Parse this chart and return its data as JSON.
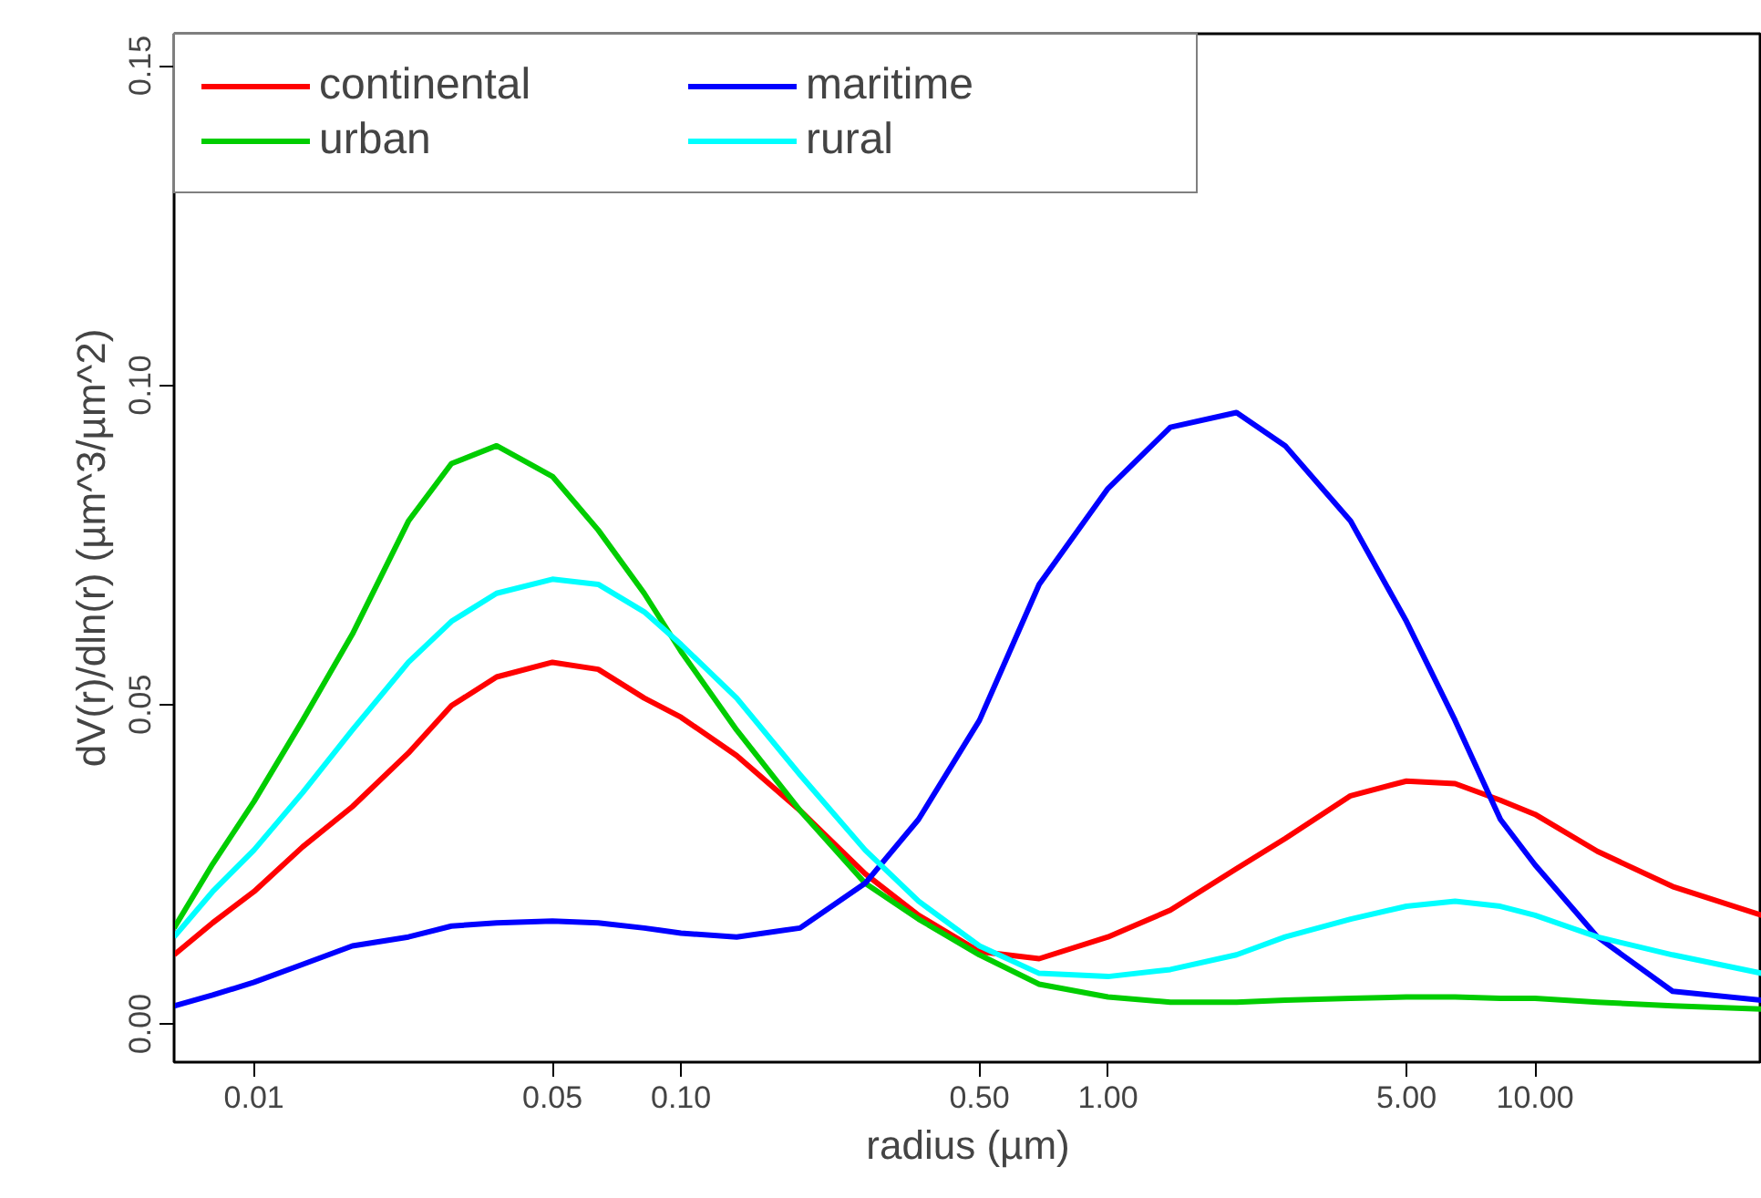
{
  "chart_data": {
    "type": "line",
    "xlabel": "radius (µm)",
    "ylabel": "dV(r)/dln(r) (µm^3/µm^2)",
    "log": "x",
    "x": [
      0.0065,
      0.008,
      0.01,
      0.013,
      0.017,
      0.023,
      0.029,
      0.037,
      0.05,
      0.064,
      0.082,
      0.1,
      0.135,
      0.19,
      0.27,
      0.36,
      0.5,
      0.69,
      1,
      1.4,
      2,
      2.6,
      3.7,
      5,
      6.5,
      8.3,
      10,
      14,
      21,
      34
    ],
    "xlim": [
      0.0065,
      34
    ],
    "ylim": [
      -0.006,
      0.155
    ],
    "xticks": [
      {
        "value": 0.01,
        "label": "0.01"
      },
      {
        "value": 0.05,
        "label": "0.05"
      },
      {
        "value": 0.1,
        "label": "0.10"
      },
      {
        "value": 0.5,
        "label": "0.50"
      },
      {
        "value": 1,
        "label": "1.00"
      },
      {
        "value": 5,
        "label": "5.00"
      },
      {
        "value": 10,
        "label": "10.00"
      }
    ],
    "yticks": [
      {
        "value": 0,
        "label": "0.00"
      },
      {
        "value": 0.05,
        "label": "0.05"
      },
      {
        "value": 0.1,
        "label": "0.10"
      },
      {
        "value": 0.15,
        "label": "0.15"
      }
    ],
    "grid": false,
    "legend": "top left",
    "line_style": "solid",
    "marker": "none",
    "series": [
      {
        "name": "continental",
        "color": "#ff0000",
        "values": [
          0.0108,
          0.0158,
          0.0207,
          0.0277,
          0.034,
          0.0424,
          0.0498,
          0.0543,
          0.0566,
          0.0555,
          0.051,
          0.048,
          0.042,
          0.0334,
          0.0235,
          0.017,
          0.0113,
          0.0102,
          0.0136,
          0.0178,
          0.0243,
          0.029,
          0.0357,
          0.038,
          0.0376,
          0.035,
          0.0328,
          0.027,
          0.0215,
          0.017
        ]
      },
      {
        "name": "urban",
        "color": "#00cd00",
        "values": [
          0.015,
          0.025,
          0.0348,
          0.0475,
          0.061,
          0.0787,
          0.0877,
          0.0905,
          0.0857,
          0.0773,
          0.0674,
          0.0583,
          0.046,
          0.0334,
          0.022,
          0.0164,
          0.0108,
          0.0062,
          0.0042,
          0.0034,
          0.0034,
          0.0037,
          0.004,
          0.0042,
          0.0042,
          0.004,
          0.004,
          0.0034,
          0.0028,
          0.0023
        ]
      },
      {
        "name": "maritime",
        "color": "#0000ff",
        "values": [
          0.0028,
          0.0045,
          0.0065,
          0.0093,
          0.0122,
          0.0136,
          0.0153,
          0.0158,
          0.0161,
          0.0158,
          0.015,
          0.0142,
          0.0136,
          0.015,
          0.022,
          0.032,
          0.0475,
          0.0688,
          0.0838,
          0.0934,
          0.0957,
          0.0905,
          0.0787,
          0.063,
          0.0475,
          0.032,
          0.0249,
          0.0136,
          0.0051,
          0.0037
        ]
      },
      {
        "name": "rural",
        "color": "#00ffff",
        "values": [
          0.0136,
          0.0207,
          0.0272,
          0.0362,
          0.046,
          0.0566,
          0.063,
          0.0674,
          0.0696,
          0.0688,
          0.0645,
          0.0594,
          0.051,
          0.039,
          0.0272,
          0.0192,
          0.0122,
          0.0079,
          0.0074,
          0.0085,
          0.0108,
          0.0136,
          0.0164,
          0.0184,
          0.0192,
          0.0184,
          0.017,
          0.0136,
          0.0108,
          0.0079
        ]
      }
    ]
  }
}
